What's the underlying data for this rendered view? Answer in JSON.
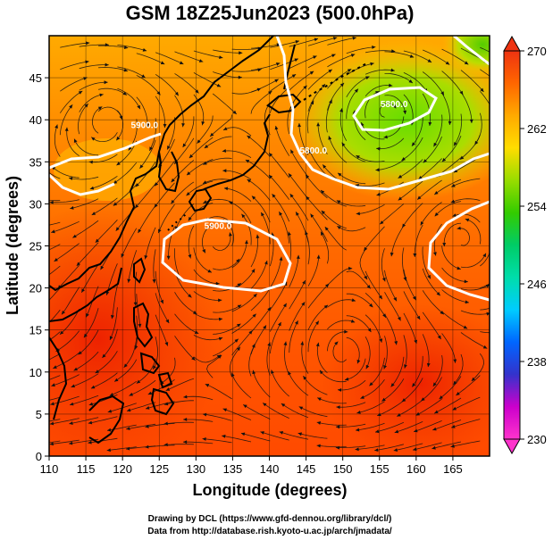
{
  "title": "GSM 18Z25Jun2023 (500.0hPa)",
  "xlabel": "Longitude (degrees)",
  "ylabel": "Latitude  (degrees)",
  "credits": [
    "Drawing by DCL (https://www.gfd-dennou.org/library/dcl/)",
    "Data from http://database.rish.kyoto-u.ac.jp/arch/jmadata/"
  ],
  "chart_data": {
    "type": "heatmap",
    "variable": "temperature with geopotential height contours and wind streamlines",
    "title": "GSM 18Z25Jun2023 (500.0hPa)",
    "xlabel": "Longitude (degrees)",
    "ylabel": "Latitude  (degrees)",
    "xlim": [
      110,
      170
    ],
    "ylim": [
      0,
      50
    ],
    "x_ticks": [
      "110",
      "115",
      "120",
      "125",
      "130",
      "135",
      "140",
      "145",
      "150",
      "155",
      "160",
      "165"
    ],
    "y_ticks": [
      "0",
      "5",
      "10",
      "15",
      "20",
      "25",
      "30",
      "35",
      "40",
      "45"
    ],
    "colorbar": {
      "min": 230,
      "max": 270,
      "ticks": [
        "230",
        "238",
        "246",
        "254",
        "262",
        "270"
      ],
      "colors": [
        "#ff33cc",
        "#cc00cc",
        "#3333cc",
        "#0066ff",
        "#00ccff",
        "#00ddaa",
        "#00cc66",
        "#33cc00",
        "#99dd00",
        "#ffdd00",
        "#ffaa00",
        "#ff6600",
        "#ee3311"
      ]
    },
    "contours": [
      {
        "label": "5800.0",
        "lon": 146,
        "lat": 36
      },
      {
        "label": "5800.0",
        "lon": 157,
        "lat": 41.5
      },
      {
        "label": "5900.0",
        "lon": 133,
        "lat": 27
      },
      {
        "label": "5900.0",
        "lon": 123,
        "lat": 39
      }
    ]
  },
  "colors": {
    "background": "#ffffff",
    "contour": "#ffffff",
    "land": "#000000"
  }
}
